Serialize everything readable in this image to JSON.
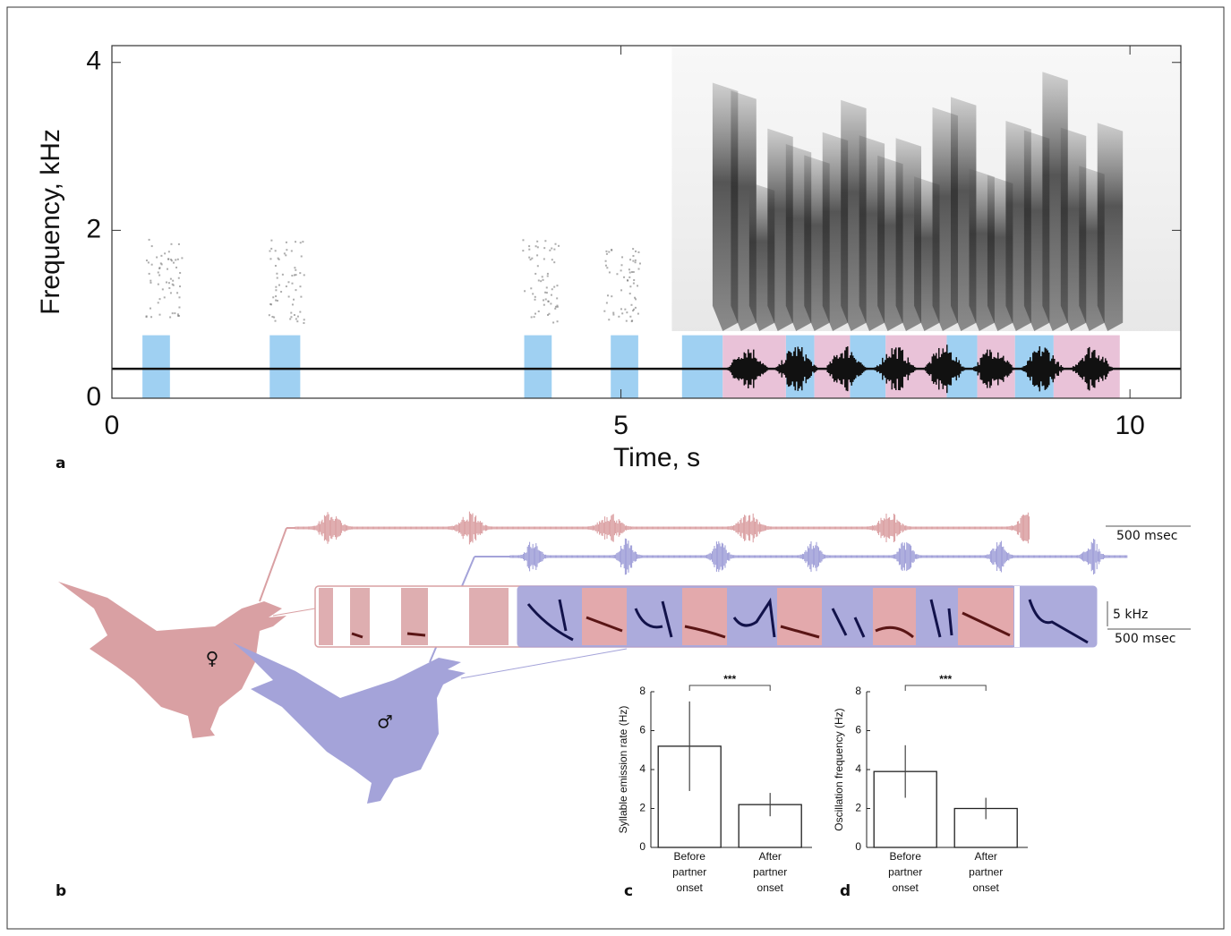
{
  "chart_data": [
    {
      "type": "spectrogram",
      "label": "a",
      "xlabel": "Time, s",
      "ylabel": "Frequency, kHz",
      "xlim": [
        0,
        10.5
      ],
      "ylim": [
        0,
        4.2
      ],
      "xticks": [
        0,
        5,
        10
      ],
      "yticks": [
        0,
        2,
        4
      ],
      "blue_intervals": [
        [
          0.3,
          0.57
        ],
        [
          1.55,
          1.85
        ],
        [
          4.05,
          4.32
        ],
        [
          4.9,
          5.17
        ],
        [
          5.6,
          6.0
        ],
        [
          6.62,
          6.9
        ],
        [
          7.25,
          7.6
        ],
        [
          8.2,
          8.5
        ],
        [
          8.87,
          9.25
        ]
      ],
      "pink_intervals": [
        [
          6.0,
          6.62
        ],
        [
          6.9,
          7.25
        ],
        [
          7.6,
          8.2
        ],
        [
          8.5,
          8.87
        ],
        [
          9.25,
          9.9
        ]
      ],
      "blue_color": "#9fd0f2",
      "pink_color": "#e9c2d8"
    },
    {
      "type": "bar",
      "label": "c",
      "ylabel": "Syllable emission rate (Hz)",
      "categories": [
        [
          "Before",
          "partner",
          "onset"
        ],
        [
          "After",
          "partner",
          "onset"
        ]
      ],
      "values": [
        5.2,
        2.2
      ],
      "errors": [
        2.3,
        0.6
      ],
      "ylim": [
        0,
        8
      ],
      "yticks": [
        0,
        2,
        4,
        6,
        8
      ],
      "annotation": "***"
    },
    {
      "type": "bar",
      "label": "d",
      "ylabel": "Oscillation frequency (Hz)",
      "categories": [
        [
          "Before",
          "partner",
          "onset"
        ],
        [
          "After",
          "partner",
          "onset"
        ]
      ],
      "values": [
        3.9,
        2.0
      ],
      "errors": [
        1.35,
        0.55
      ],
      "ylim": [
        0,
        8
      ],
      "yticks": [
        0,
        2,
        4,
        6,
        8
      ],
      "annotation": "***"
    }
  ],
  "panel_b": {
    "label": "b",
    "time_scale": "500 msec",
    "freq_scale": "5 kHz",
    "spectrogram_time_scale": "500 msec",
    "female_symbol": "♀",
    "male_symbol": "♂"
  }
}
